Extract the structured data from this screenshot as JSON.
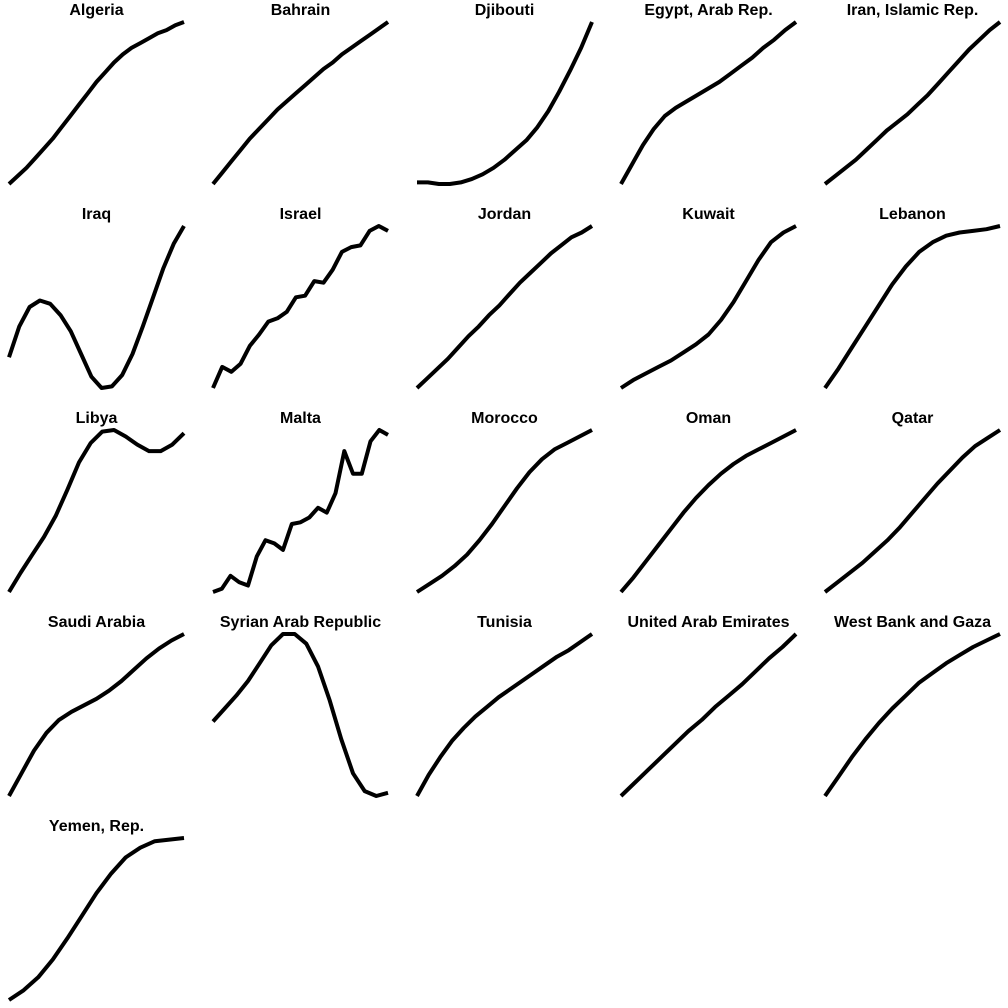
{
  "chart_data": {
    "type": "line",
    "layout": "small-multiples",
    "grid": false,
    "axes_visible": false,
    "line_color": "#000000",
    "panels": [
      {
        "title": "Algeria",
        "values": [
          0,
          0.05,
          0.1,
          0.16,
          0.22,
          0.28,
          0.35,
          0.42,
          0.49,
          0.56,
          0.63,
          0.69,
          0.75,
          0.8,
          0.84,
          0.87,
          0.9,
          0.93,
          0.95,
          0.98,
          1.0
        ]
      },
      {
        "title": "Bahrain",
        "values": [
          0,
          0.07,
          0.14,
          0.21,
          0.28,
          0.34,
          0.4,
          0.46,
          0.51,
          0.56,
          0.61,
          0.66,
          0.71,
          0.75,
          0.8,
          0.84,
          0.88,
          0.92,
          0.96,
          1.0
        ]
      },
      {
        "title": "Djibouti",
        "values": [
          0.01,
          0.01,
          0.0,
          0.0,
          0.01,
          0.03,
          0.06,
          0.1,
          0.15,
          0.21,
          0.27,
          0.35,
          0.45,
          0.57,
          0.7,
          0.84,
          1.0
        ]
      },
      {
        "title": "Egypt, Arab Rep.",
        "values": [
          0,
          0.12,
          0.24,
          0.34,
          0.42,
          0.47,
          0.51,
          0.55,
          0.59,
          0.63,
          0.68,
          0.73,
          0.78,
          0.84,
          0.89,
          0.95,
          1.0
        ]
      },
      {
        "title": "Iran, Islamic Rep.",
        "values": [
          0,
          0.05,
          0.1,
          0.15,
          0.21,
          0.27,
          0.33,
          0.38,
          0.43,
          0.49,
          0.55,
          0.62,
          0.69,
          0.76,
          0.83,
          0.89,
          0.95,
          1.0
        ]
      },
      {
        "title": "Iraq",
        "values": [
          0.19,
          0.38,
          0.5,
          0.54,
          0.52,
          0.45,
          0.35,
          0.21,
          0.07,
          0.0,
          0.01,
          0.08,
          0.21,
          0.38,
          0.56,
          0.74,
          0.89,
          1.0
        ]
      },
      {
        "title": "Israel",
        "values": [
          0.0,
          0.13,
          0.1,
          0.15,
          0.26,
          0.33,
          0.41,
          0.43,
          0.47,
          0.56,
          0.57,
          0.66,
          0.65,
          0.73,
          0.84,
          0.87,
          0.88,
          0.97,
          1.0,
          0.97
        ]
      },
      {
        "title": "Jordan",
        "values": [
          0,
          0.06,
          0.12,
          0.18,
          0.25,
          0.32,
          0.38,
          0.45,
          0.51,
          0.58,
          0.65,
          0.71,
          0.77,
          0.83,
          0.88,
          0.93,
          0.96,
          1.0
        ]
      },
      {
        "title": "Kuwait",
        "values": [
          0,
          0.05,
          0.09,
          0.13,
          0.17,
          0.22,
          0.27,
          0.33,
          0.42,
          0.53,
          0.66,
          0.79,
          0.9,
          0.96,
          1.0
        ]
      },
      {
        "title": "Lebanon",
        "values": [
          0,
          0.12,
          0.25,
          0.38,
          0.51,
          0.64,
          0.75,
          0.84,
          0.9,
          0.94,
          0.96,
          0.97,
          0.98,
          1.0
        ]
      },
      {
        "title": "Libya",
        "values": [
          0,
          0.12,
          0.23,
          0.34,
          0.47,
          0.63,
          0.8,
          0.92,
          0.99,
          1.0,
          0.96,
          0.91,
          0.87,
          0.87,
          0.91,
          0.98
        ]
      },
      {
        "title": "Malta",
        "values": [
          0.0,
          0.02,
          0.1,
          0.06,
          0.04,
          0.22,
          0.32,
          0.3,
          0.26,
          0.42,
          0.43,
          0.46,
          0.52,
          0.49,
          0.61,
          0.87,
          0.73,
          0.73,
          0.93,
          1.0,
          0.97
        ]
      },
      {
        "title": "Morocco",
        "values": [
          0,
          0.05,
          0.1,
          0.16,
          0.23,
          0.32,
          0.42,
          0.53,
          0.64,
          0.74,
          0.82,
          0.88,
          0.92,
          0.96,
          1.0
        ]
      },
      {
        "title": "Oman",
        "values": [
          0,
          0.09,
          0.19,
          0.29,
          0.39,
          0.49,
          0.58,
          0.66,
          0.73,
          0.79,
          0.84,
          0.88,
          0.92,
          0.96,
          1.0
        ]
      },
      {
        "title": "Qatar",
        "values": [
          0,
          0.06,
          0.12,
          0.18,
          0.25,
          0.32,
          0.4,
          0.49,
          0.58,
          0.67,
          0.75,
          0.83,
          0.9,
          0.95,
          1.0
        ]
      },
      {
        "title": "Saudi Arabia",
        "values": [
          0,
          0.14,
          0.28,
          0.39,
          0.47,
          0.52,
          0.56,
          0.6,
          0.65,
          0.71,
          0.78,
          0.85,
          0.91,
          0.96,
          1.0
        ]
      },
      {
        "title": "Syrian Arab Republic",
        "values": [
          0.46,
          0.54,
          0.62,
          0.71,
          0.82,
          0.93,
          1.0,
          1.0,
          0.94,
          0.8,
          0.59,
          0.35,
          0.14,
          0.03,
          0.0,
          0.02
        ]
      },
      {
        "title": "Tunisia",
        "values": [
          0,
          0.13,
          0.24,
          0.34,
          0.42,
          0.49,
          0.55,
          0.61,
          0.66,
          0.71,
          0.76,
          0.81,
          0.86,
          0.9,
          0.95,
          1.0
        ]
      },
      {
        "title": "United Arab Emirates",
        "values": [
          0,
          0.08,
          0.16,
          0.24,
          0.32,
          0.4,
          0.47,
          0.55,
          0.62,
          0.69,
          0.77,
          0.85,
          0.92,
          1.0
        ]
      },
      {
        "title": "West Bank and Gaza",
        "values": [
          0,
          0.12,
          0.24,
          0.35,
          0.45,
          0.54,
          0.62,
          0.7,
          0.76,
          0.82,
          0.87,
          0.92,
          0.96,
          1.0
        ]
      },
      {
        "title": "Yemen, Rep.",
        "values": [
          0,
          0.06,
          0.14,
          0.25,
          0.38,
          0.52,
          0.66,
          0.78,
          0.88,
          0.94,
          0.98,
          0.99,
          1.0
        ]
      }
    ]
  }
}
